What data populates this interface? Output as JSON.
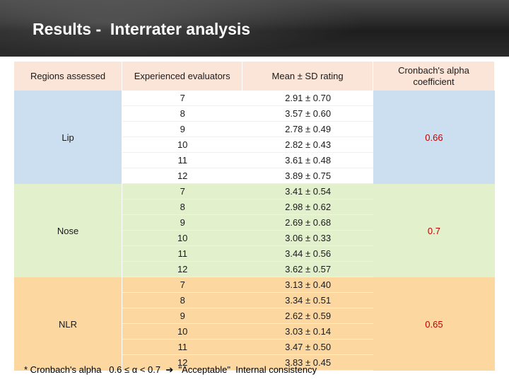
{
  "title": "Results -  Interrater analysis",
  "table": {
    "headers": {
      "region": "Regions assessed",
      "evaluators": "Experienced evaluators",
      "mean": "Mean ± SD rating",
      "coef_line1": "Cronbach's alpha",
      "coef_line2": "coefficient"
    },
    "groups": [
      {
        "region": "Lip",
        "coefficient": "0.66",
        "rows": [
          {
            "evaluator": "7",
            "mean": "2.91 ± 0.70"
          },
          {
            "evaluator": "8",
            "mean": "3.57 ± 0.60"
          },
          {
            "evaluator": "9",
            "mean": "2.78 ± 0.49"
          },
          {
            "evaluator": "10",
            "mean": "2.82 ± 0.43"
          },
          {
            "evaluator": "11",
            "mean": "3.61 ± 0.48"
          },
          {
            "evaluator": "12",
            "mean": "3.89 ± 0.75"
          }
        ]
      },
      {
        "region": "Nose",
        "coefficient": "0.7",
        "rows": [
          {
            "evaluator": "7",
            "mean": "3.41 ± 0.54"
          },
          {
            "evaluator": "8",
            "mean": "2.98 ± 0.62"
          },
          {
            "evaluator": "9",
            "mean": "2.69 ± 0.68"
          },
          {
            "evaluator": "10",
            "mean": "3.06 ± 0.33"
          },
          {
            "evaluator": "11",
            "mean": "3.44 ± 0.56"
          },
          {
            "evaluator": "12",
            "mean": "3.62 ± 0.57"
          }
        ]
      },
      {
        "region": "NLR",
        "coefficient": "0.65",
        "rows": [
          {
            "evaluator": "7",
            "mean": "3.13 ± 0.40"
          },
          {
            "evaluator": "8",
            "mean": "3.34 ± 0.51"
          },
          {
            "evaluator": "9",
            "mean": "2.62 ± 0.59"
          },
          {
            "evaluator": "10",
            "mean": "3.03 ± 0.14"
          },
          {
            "evaluator": "11",
            "mean": "3.47 ± 0.50"
          },
          {
            "evaluator": "12",
            "mean": "3.83 ± 0.45"
          }
        ]
      }
    ]
  },
  "footnote": "* Cronbach's alpha   0.6 ≤ α < 0.7  ➔  \"Acceptable\"  Internal consistency",
  "colors": {
    "header_bg": "#fbe5d8",
    "lip_bg": "#ccdff0",
    "nose_bg": "#e2f0cb",
    "nlr_bg": "#fdd7a0",
    "coefficient_text": "#c00000"
  }
}
